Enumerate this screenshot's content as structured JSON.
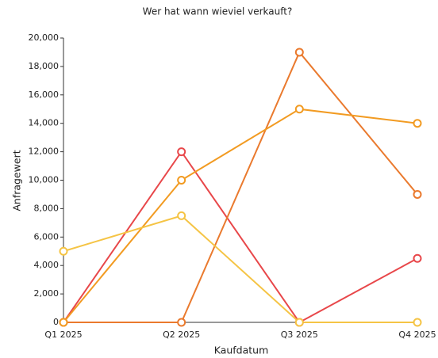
{
  "chart_data": {
    "type": "line",
    "title": "Wer hat wann wieviel verkauft?",
    "x_label": "Kaufdatum",
    "y_label": "Anfragewert",
    "categories": [
      "Q1 2025",
      "Q2 2025",
      "Q3 2025",
      "Q4 2025"
    ],
    "series": [
      {
        "color": "#e8474a",
        "values": [
          0,
          12000,
          0,
          4500
        ]
      },
      {
        "color": "#ea7a2e",
        "values": [
          0,
          0,
          19000,
          9000
        ]
      },
      {
        "color": "#f29b22",
        "values": [
          0,
          10000,
          15000,
          14000
        ]
      },
      {
        "color": "#f5c445",
        "values": [
          5000,
          7500,
          0,
          0
        ]
      }
    ],
    "ylim": [
      0,
      20000
    ],
    "yticks": [
      0,
      {
        "value": 2000,
        "label": "2,000"
      },
      {
        "value": 4000,
        "label": "4,000"
      },
      {
        "value": 6000,
        "label": "6,000"
      },
      {
        "value": 8000,
        "label": "8,000"
      },
      {
        "value": 10000,
        "label": "10,000"
      },
      {
        "value": 12000,
        "label": "12,000"
      },
      {
        "value": 14000,
        "label": "14,000"
      },
      {
        "value": 16000,
        "label": "16,000"
      },
      {
        "value": 18000,
        "label": "18,000"
      },
      {
        "value": 20000,
        "label": "20,000"
      }
    ],
    "grid": false
  }
}
